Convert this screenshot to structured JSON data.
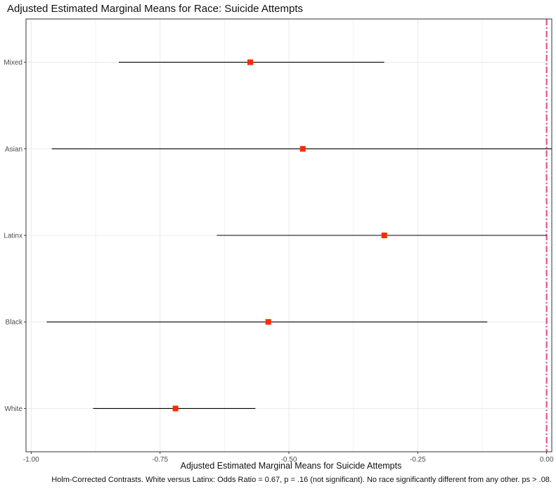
{
  "chart_data": {
    "type": "forest",
    "title": "Adjusted Estimated Marginal Means for Race: Suicide Attempts",
    "xlabel": "Adjusted Estimated Marginal Means for Suicide Attempts",
    "caption": "Holm-Corrected Contrasts. White versus Latinx: Odds Ratio = 0.67, p = .16 (not significant). No race significantly different from any other. ps > .08.",
    "categories": [
      "Mixed",
      "Asian",
      "Latinx",
      "Black",
      "White"
    ],
    "estimates": [
      -0.575,
      -0.473,
      -0.315,
      -0.54,
      -0.72
    ],
    "lower": [
      -0.83,
      -0.96,
      -0.64,
      -0.97,
      -0.88
    ],
    "upper": [
      -0.315,
      0.01,
      0.0,
      -0.115,
      -0.565
    ],
    "xlim": [
      -1.01,
      0.01
    ],
    "xticks": [
      -1.0,
      -0.75,
      -0.5,
      -0.25,
      0.0
    ],
    "xtick_labels": [
      "-1.00",
      "-0.75",
      "-0.50",
      "-0.25",
      "0.00"
    ],
    "reference_line": 0.0,
    "grid": true,
    "colors": {
      "point": "#ff2a00",
      "interval": "#000000",
      "reference_line": "#e0559b",
      "grid": "#ebebeb",
      "panel_border": "#333333"
    }
  }
}
